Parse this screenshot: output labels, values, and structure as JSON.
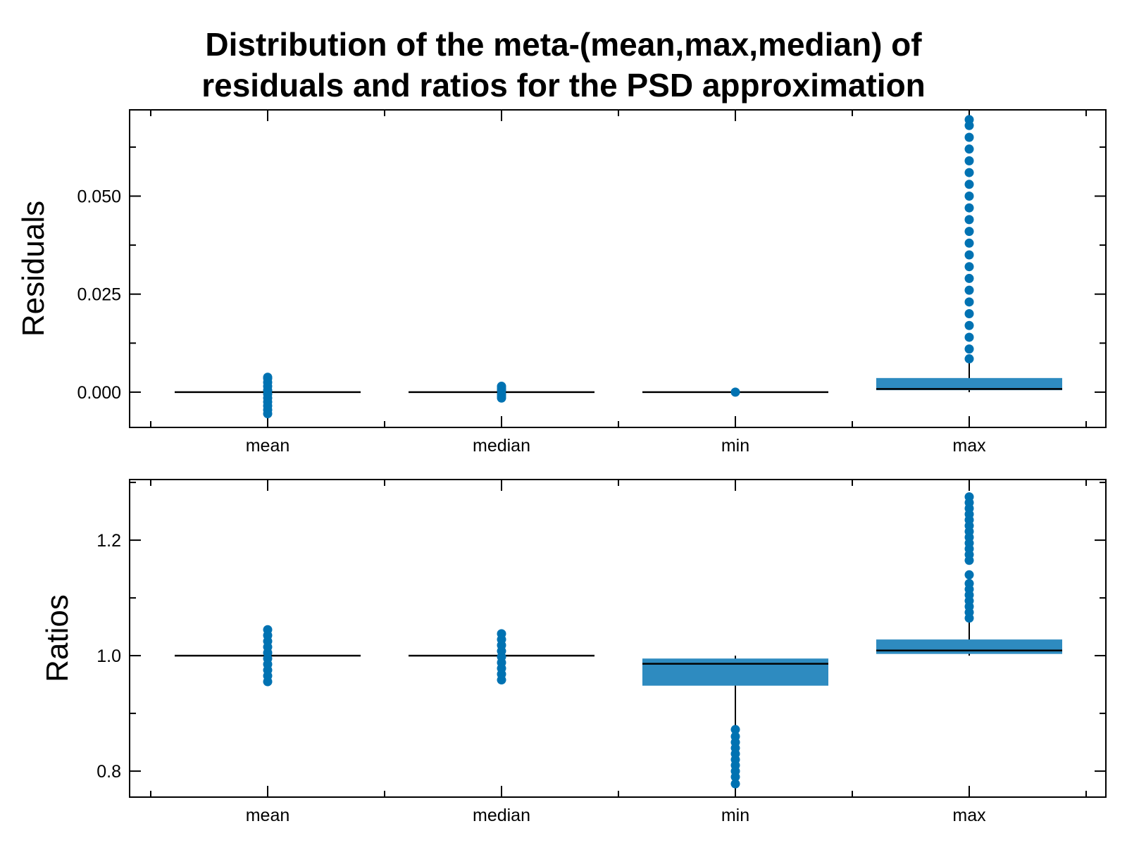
{
  "title_lines": [
    "Distribution of the meta-(mean,max,median) of",
    "residuals and ratios for the PSD approximation"
  ],
  "colors": {
    "box": "#2E8BC0",
    "points": "#0072B2",
    "lines": "#000000"
  },
  "chart_data": [
    {
      "type": "box",
      "ylabel": "Residuals",
      "categories": [
        "mean",
        "median",
        "min",
        "max"
      ],
      "ylim": [
        -0.009,
        0.072
      ],
      "yticks": [
        0.0,
        0.025,
        0.05
      ],
      "ytick_labels": [
        "0.000",
        "0.025",
        "0.050"
      ],
      "boxes": [
        {
          "category": "mean",
          "q1": 0.0,
          "median": 0.0,
          "q3": 0.0,
          "whisker_low": 0.0,
          "whisker_high": 0.0,
          "fliers": [
            -0.0055,
            -0.0045,
            -0.0035,
            -0.0025,
            -0.0015,
            -0.0005,
            0.0005,
            0.0015,
            0.0025,
            0.0035,
            0.0038
          ]
        },
        {
          "category": "median",
          "q1": 0.0,
          "median": 0.0,
          "q3": 0.0,
          "whisker_low": 0.0,
          "whisker_high": 0.0,
          "fliers": [
            -0.0015,
            -0.001,
            -0.0005,
            0.0005,
            0.001,
            0.0015
          ]
        },
        {
          "category": "min",
          "q1": 0.0,
          "median": 0.0,
          "q3": 0.0,
          "whisker_low": 0.0,
          "whisker_high": 0.0,
          "fliers": [
            0.0
          ]
        },
        {
          "category": "max",
          "q1": 0.0005,
          "median": 0.0008,
          "q3": 0.0036,
          "whisker_low": 0.0,
          "whisker_high": 0.0085,
          "fliers": [
            0.0085,
            0.011,
            0.014,
            0.017,
            0.02,
            0.023,
            0.026,
            0.029,
            0.032,
            0.035,
            0.038,
            0.041,
            0.044,
            0.047,
            0.05,
            0.053,
            0.056,
            0.059,
            0.062,
            0.065,
            0.068,
            0.0695
          ]
        }
      ]
    },
    {
      "type": "box",
      "ylabel": "Ratios",
      "categories": [
        "mean",
        "median",
        "min",
        "max"
      ],
      "ylim": [
        0.755,
        1.305
      ],
      "yticks": [
        0.8,
        1.0,
        1.2
      ],
      "ytick_labels": [
        "0.8",
        "1.0",
        "1.2"
      ],
      "boxes": [
        {
          "category": "mean",
          "q1": 1.0,
          "median": 1.0,
          "q3": 1.0,
          "whisker_low": 1.0,
          "whisker_high": 1.0,
          "fliers": [
            0.955,
            0.965,
            0.975,
            0.985,
            0.995,
            1.005,
            1.015,
            1.025,
            1.035,
            1.045
          ]
        },
        {
          "category": "median",
          "q1": 1.0,
          "median": 1.0,
          "q3": 1.0,
          "whisker_low": 1.0,
          "whisker_high": 1.0,
          "fliers": [
            0.958,
            0.968,
            0.978,
            0.988,
            0.998,
            1.008,
            1.018,
            1.028,
            1.038
          ]
        },
        {
          "category": "min",
          "q1": 0.948,
          "median": 0.986,
          "q3": 0.995,
          "whisker_low": 0.875,
          "whisker_high": 1.0,
          "fliers": [
            0.778,
            0.79,
            0.8,
            0.81,
            0.82,
            0.83,
            0.84,
            0.85,
            0.86,
            0.872
          ]
        },
        {
          "category": "max",
          "q1": 1.003,
          "median": 1.009,
          "q3": 1.028,
          "whisker_low": 1.0,
          "whisker_high": 1.065,
          "fliers": [
            1.065,
            1.075,
            1.085,
            1.095,
            1.105,
            1.115,
            1.125,
            1.14,
            1.165,
            1.175,
            1.185,
            1.195,
            1.205,
            1.215,
            1.225,
            1.235,
            1.245,
            1.255,
            1.265,
            1.275
          ]
        }
      ]
    }
  ]
}
